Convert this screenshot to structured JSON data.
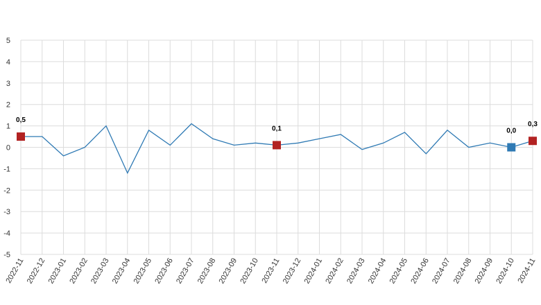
{
  "chart_data": {
    "type": "line",
    "title": "",
    "xlabel": "",
    "ylabel": "",
    "ylim": [
      -5,
      5
    ],
    "yticks": [
      "-5",
      "-4",
      "-3",
      "-2",
      "-1",
      "0",
      "1",
      "2",
      "3",
      "4",
      "5"
    ],
    "grid": true,
    "legend": "none",
    "categories": [
      "2022-11",
      "2022-12",
      "2023-01",
      "2023-02",
      "2023-03",
      "2023-04",
      "2023-05",
      "2023-06",
      "2023-07",
      "2023-08",
      "2023-09",
      "2023-10",
      "2023-11",
      "2023-12",
      "2024-01",
      "2024-02",
      "2024-03",
      "2024-04",
      "2024-05",
      "2024-06",
      "2024-07",
      "2024-08",
      "2024-09",
      "2024-10",
      "2024-11"
    ],
    "series": [
      {
        "color": "#2f7ab4",
        "values": [
          0.5,
          0.5,
          -0.4,
          0.0,
          1.0,
          -1.2,
          0.8,
          0.1,
          1.1,
          0.4,
          0.1,
          0.2,
          0.1,
          0.2,
          0.4,
          0.6,
          -0.1,
          0.2,
          0.7,
          -0.3,
          0.8,
          0.0,
          0.2,
          0.0,
          0.3
        ]
      }
    ],
    "highlights": [
      {
        "index": 0,
        "label": "0,5",
        "color": "#b22222"
      },
      {
        "index": 12,
        "label": "0,1",
        "color": "#b22222"
      },
      {
        "index": 23,
        "label": "0,0",
        "color": "#2f7ab4"
      },
      {
        "index": 24,
        "label": "0,3",
        "color": "#b22222"
      }
    ]
  }
}
